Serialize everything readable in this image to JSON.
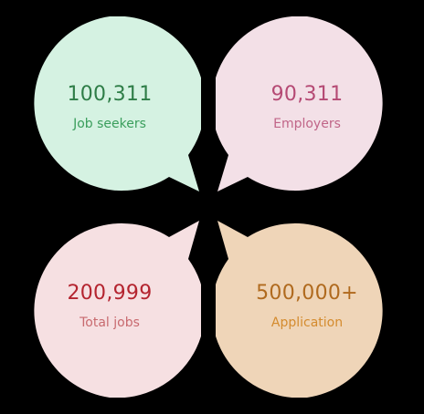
{
  "stats": [
    {
      "value": "100,311",
      "label": "Job seekers",
      "fill": "#d5f2e2",
      "value_color": "#2e7d47",
      "label_color": "#3a9e5c"
    },
    {
      "value": "90,311",
      "label": "Employers",
      "fill": "#f3e0e7",
      "value_color": "#b54a74",
      "label_color": "#c06588"
    },
    {
      "value": "200,999",
      "label": "Total jobs",
      "fill": "#f6e0e2",
      "value_color": "#b4242f",
      "label_color": "#c86a6f"
    },
    {
      "value": "500,000+",
      "label": "Application",
      "fill": "#efd5b8",
      "value_color": "#b06a1e",
      "label_color": "#d48b2e"
    }
  ]
}
